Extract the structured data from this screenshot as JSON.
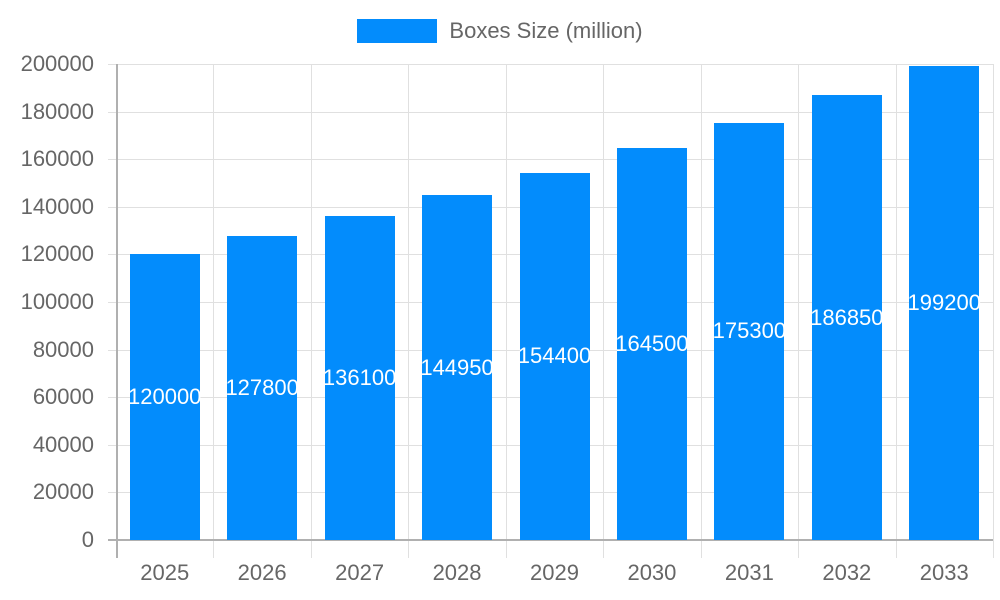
{
  "chart_data": {
    "type": "bar",
    "title": "",
    "legend": [
      {
        "label": "Boxes Size (million)",
        "color": "#038cfc"
      }
    ],
    "legend_position": "top",
    "categories": [
      "2025",
      "2026",
      "2027",
      "2028",
      "2029",
      "2030",
      "2031",
      "2032",
      "2033"
    ],
    "series": [
      {
        "name": "Boxes Size (million)",
        "color": "#038cfc",
        "values": [
          120000,
          127800,
          136100,
          144950,
          154400,
          164500,
          175300,
          186850,
          199200
        ]
      }
    ],
    "data_labels": [
      "120000",
      "127800",
      "136100",
      "144950",
      "154400",
      "164500",
      "175300",
      "186850",
      "199200"
    ],
    "xlabel": "",
    "ylabel": "",
    "ylim": [
      0,
      200000
    ],
    "yticks": [
      "0",
      "20000",
      "40000",
      "60000",
      "80000",
      "100000",
      "120000",
      "140000",
      "160000",
      "180000",
      "200000"
    ],
    "grid": true
  }
}
